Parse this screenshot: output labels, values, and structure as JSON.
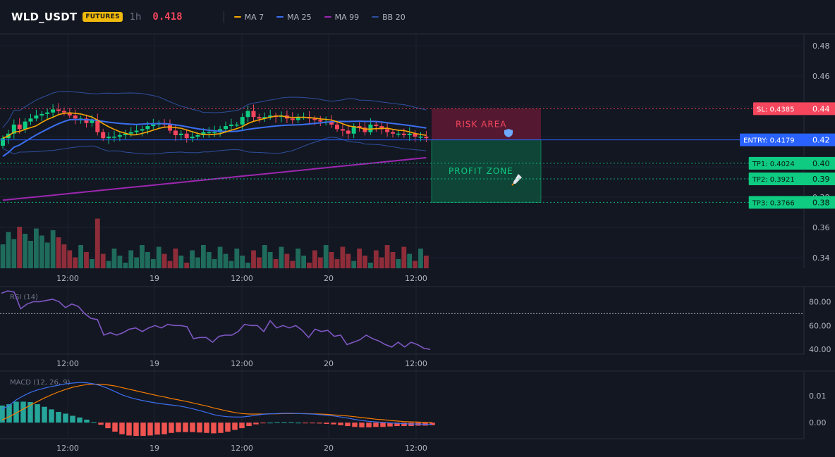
{
  "header": {
    "symbol": "WLD_USDT",
    "badge": "FUTURES",
    "interval": "1h",
    "last_price": "0.418",
    "indicators": [
      {
        "label": "MA 7",
        "color": "#f7a600"
      },
      {
        "label": "MA 25",
        "color": "#3b6ff0"
      },
      {
        "label": "MA 99",
        "color": "#9c27b0"
      },
      {
        "label": "BB 20",
        "color": "#2e4f9c"
      }
    ]
  },
  "colors": {
    "up": "#0ecb81",
    "down": "#f6465d",
    "vol_up": "#1f6b5c",
    "vol_down": "#8e2d39",
    "ma7": "#f7a600",
    "ma25": "#3b6ff0",
    "ma99": "#9c27b0",
    "bb": "#2e4f9c",
    "rsi": "#7e57c2",
    "macd": "#3b6ff0",
    "signal": "#f57c00",
    "hist_up": "#26a69a",
    "hist_down": "#ef5350"
  },
  "chart_data": [
    {
      "type": "candlestick",
      "x_tick_labels": [
        "12:00",
        "19",
        "12:00",
        "20",
        "12:00"
      ],
      "y_ticks": [
        "0.48",
        "0.46",
        "0.44",
        "0.42",
        "0.40",
        "0.38",
        "0.36",
        "0.34"
      ],
      "ylim": [
        0.333,
        0.488
      ],
      "indicators": [
        "MA 7",
        "MA 25",
        "MA 99",
        "BB 20"
      ],
      "closes": [
        0.419,
        0.422,
        0.428,
        0.425,
        0.43,
        0.432,
        0.434,
        0.435,
        0.436,
        0.438,
        0.437,
        0.436,
        0.434,
        0.432,
        0.432,
        0.429,
        0.431,
        0.423,
        0.419,
        0.42,
        0.42,
        0.421,
        0.422,
        0.423,
        0.424,
        0.425,
        0.427,
        0.428,
        0.429,
        0.428,
        0.424,
        0.421,
        0.422,
        0.419,
        0.42,
        0.421,
        0.423,
        0.423,
        0.423,
        0.425,
        0.427,
        0.428,
        0.428,
        0.433,
        0.437,
        0.433,
        0.432,
        0.433,
        0.434,
        0.433,
        0.434,
        0.432,
        0.431,
        0.433,
        0.433,
        0.432,
        0.431,
        0.43,
        0.43,
        0.428,
        0.425,
        0.424,
        0.422,
        0.427,
        0.426,
        0.423,
        0.428,
        0.427,
        0.425,
        0.423,
        0.422,
        0.422,
        0.421,
        0.422,
        0.42,
        0.42,
        0.419
      ],
      "levels": [
        {
          "label": "SL: 0.4385",
          "axis_label": "0.44",
          "value": 0.4385,
          "color": "#f6465d"
        },
        {
          "label": "ENTRY: 0.4179",
          "axis_label": "0.42",
          "value": 0.4179,
          "color": "#2962ff"
        },
        {
          "label": "TP1: 0.4024",
          "axis_label": "0.40",
          "value": 0.4024,
          "color": "#0ecb81"
        },
        {
          "label": "TP2: 0.3921",
          "axis_label": "0.39",
          "value": 0.3921,
          "color": "#0ecb81"
        },
        {
          "label": "TP3: 0.3766",
          "axis_label": "0.38",
          "value": 0.3766,
          "color": "#0ecb81"
        }
      ],
      "zones": [
        {
          "label": "RISK AREA",
          "icon": "shield-icon",
          "from": 0.4385,
          "to": 0.4179
        },
        {
          "label": "PROFIT ZONE",
          "icon": "rocket-icon",
          "from": 0.4179,
          "to": 0.3766
        }
      ]
    },
    {
      "type": "line",
      "title": "RSI (14)",
      "y_ticks": [
        "80.00",
        "60.00",
        "40.00"
      ],
      "ylim": [
        36,
        92
      ],
      "threshold": 70,
      "values": [
        87,
        89,
        88,
        74,
        78,
        80,
        80,
        81,
        82,
        80,
        75,
        78,
        76,
        70,
        66,
        65,
        52,
        54,
        52,
        54,
        57,
        58,
        55,
        58,
        60,
        58,
        61,
        60,
        60,
        59,
        49,
        50,
        50,
        46,
        51,
        52,
        52,
        55,
        61,
        60,
        60,
        55,
        64,
        58,
        60,
        58,
        60,
        56,
        50,
        57,
        55,
        56,
        51,
        52,
        44,
        46,
        48,
        52,
        49,
        47,
        44,
        42,
        46,
        42,
        46,
        44,
        41,
        40
      ],
      "x_tick_labels": [
        "12:00",
        "19",
        "12:00",
        "20",
        "12:00"
      ]
    },
    {
      "type": "line+bar",
      "title": "MACD (12, 26, 9)",
      "y_ticks": [
        "0.01",
        "0.00"
      ],
      "ylim": [
        -0.006,
        0.019
      ],
      "macd": [
        0.005,
        0.0065,
        0.0085,
        0.01,
        0.0113,
        0.0122,
        0.0129,
        0.0135,
        0.014,
        0.0145,
        0.0148,
        0.015,
        0.0149,
        0.0145,
        0.0138,
        0.0128,
        0.0116,
        0.0104,
        0.0095,
        0.0088,
        0.0082,
        0.0077,
        0.0073,
        0.0069,
        0.0066,
        0.0063,
        0.0058,
        0.0052,
        0.0045,
        0.0038,
        0.003,
        0.0025,
        0.0022,
        0.0021,
        0.0021,
        0.0024,
        0.0028,
        0.0031,
        0.0033,
        0.0034,
        0.0035,
        0.0035,
        0.0034,
        0.0033,
        0.0032,
        0.003,
        0.0028,
        0.0025,
        0.0021,
        0.0017,
        0.0012,
        0.0008,
        0.0005,
        0.0003,
        0.0001,
        -0.0001,
        -0.0002,
        -0.0004,
        -0.0005,
        -0.0005,
        -0.0006,
        -0.0006
      ],
      "signal": [
        0.001,
        0.0022,
        0.0036,
        0.0051,
        0.0065,
        0.0079,
        0.0092,
        0.0104,
        0.0115,
        0.0124,
        0.0132,
        0.0138,
        0.0142,
        0.0144,
        0.0143,
        0.0141,
        0.0137,
        0.0131,
        0.0125,
        0.0119,
        0.0113,
        0.0107,
        0.0101,
        0.0096,
        0.009,
        0.0085,
        0.008,
        0.0074,
        0.0068,
        0.0062,
        0.0055,
        0.0049,
        0.0043,
        0.0038,
        0.0034,
        0.0032,
        0.0032,
        0.0032,
        0.0033,
        0.0033,
        0.0034,
        0.0034,
        0.0034,
        0.0034,
        0.0033,
        0.0032,
        0.0031,
        0.0029,
        0.0027,
        0.0025,
        0.0022,
        0.0019,
        0.0016,
        0.0013,
        0.0011,
        0.0008,
        0.0006,
        0.0004,
        0.0003,
        0.0002,
        0.0001,
        0.0
      ],
      "x_tick_labels": [
        "12:00",
        "19",
        "12:00",
        "20",
        "12:00"
      ]
    }
  ]
}
